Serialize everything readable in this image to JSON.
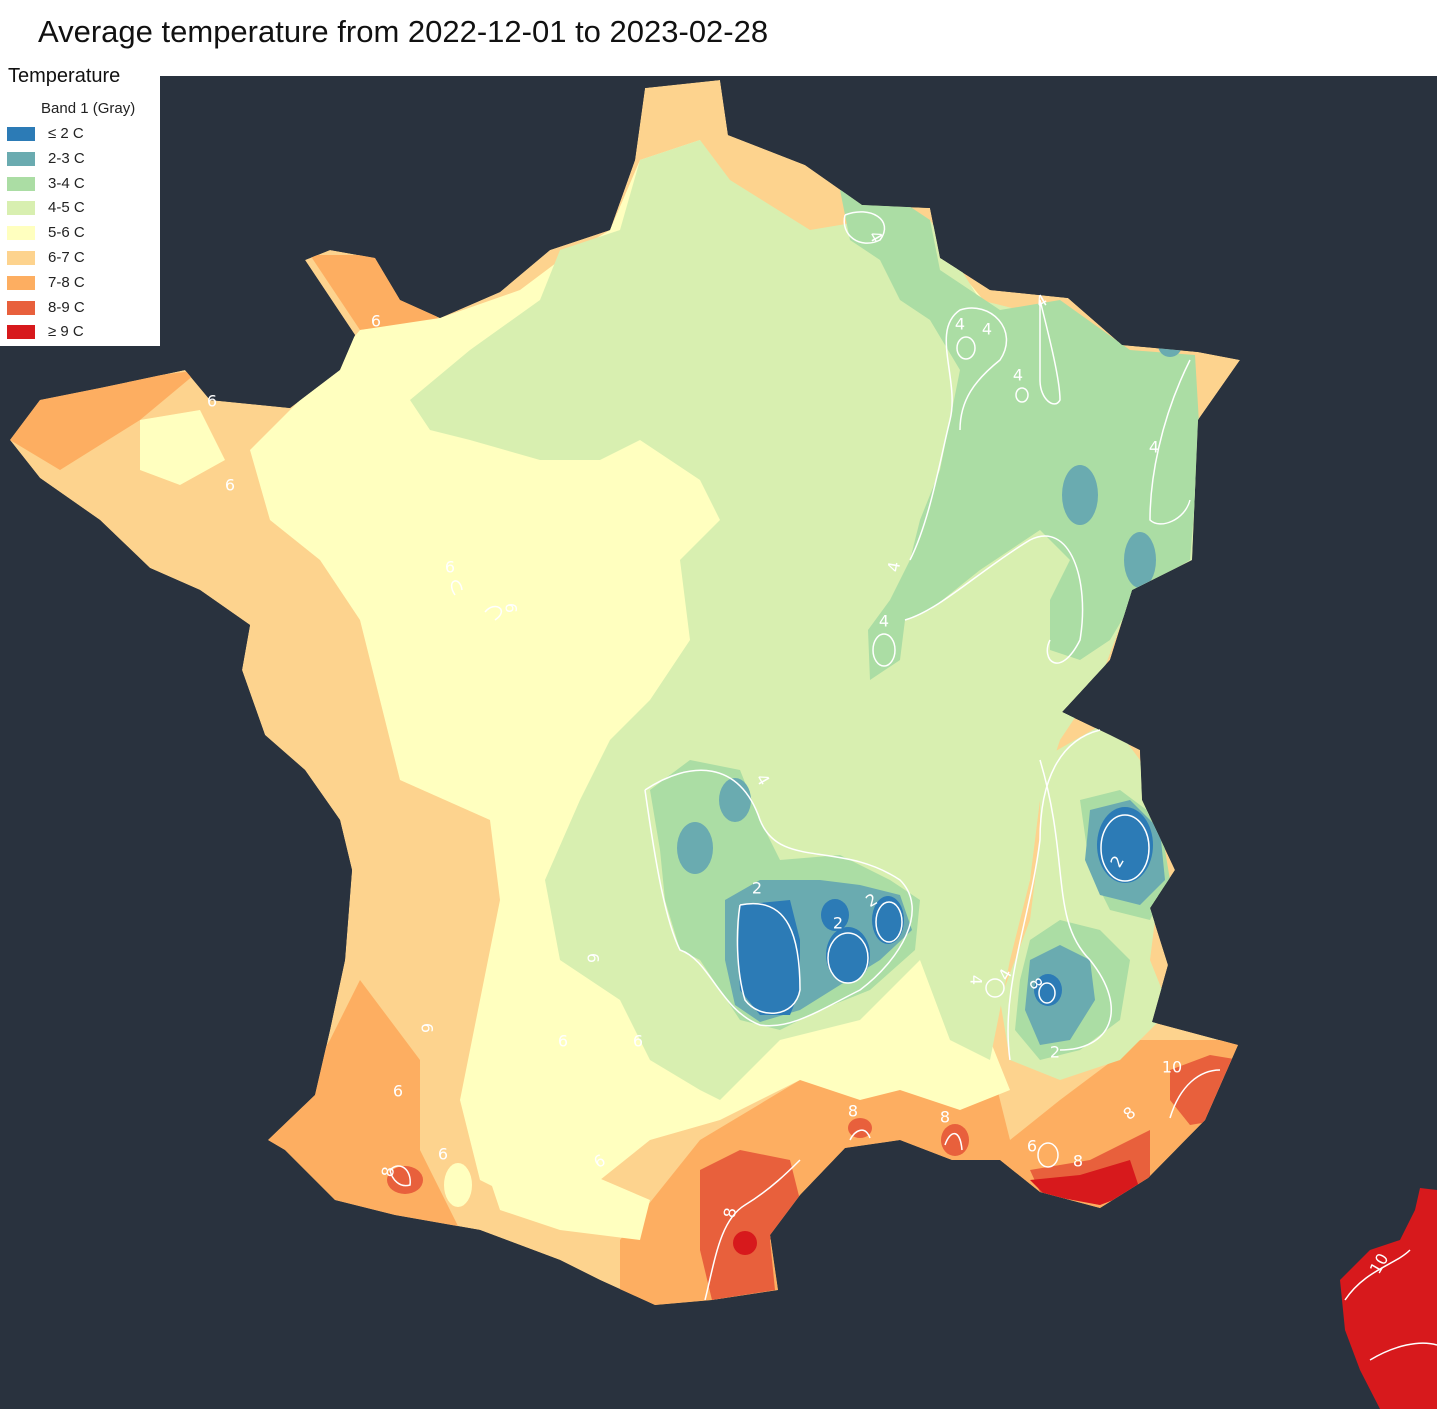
{
  "title": "Average temperature from 2022-12-01 to 2023-02-28",
  "legend": {
    "title": "Temperature",
    "subtitle": "Band 1 (Gray)",
    "items": [
      {
        "label": "≤ 2 C",
        "color": "#2c7bb6"
      },
      {
        "label": "2-3 C",
        "color": "#6aabb0"
      },
      {
        "label": "3-4 C",
        "color": "#abdda4"
      },
      {
        "label": "4-5 C",
        "color": "#d8efb0"
      },
      {
        "label": "5-6 C",
        "color": "#ffffbf"
      },
      {
        "label": "6-7 C",
        "color": "#fdd38e"
      },
      {
        "label": "7-8 C",
        "color": "#fdae61"
      },
      {
        "label": "8-9 C",
        "color": "#e8603c"
      },
      {
        "label": "≥ 9 C",
        "color": "#d7191c"
      }
    ]
  },
  "colors": {
    "background": "#29323e",
    "contour": "#ffffff"
  },
  "contour_labels": [
    "6",
    "6",
    "6",
    "6",
    "6",
    "6",
    "6",
    "6",
    "6",
    "6",
    "6",
    "6",
    "6",
    "4",
    "4",
    "4",
    "4",
    "4",
    "4",
    "4",
    "4",
    "4",
    "4",
    "4",
    "2",
    "2",
    "2",
    "2",
    "2",
    "8",
    "8",
    "8",
    "8",
    "8",
    "8",
    "8",
    "10",
    "10"
  ]
}
